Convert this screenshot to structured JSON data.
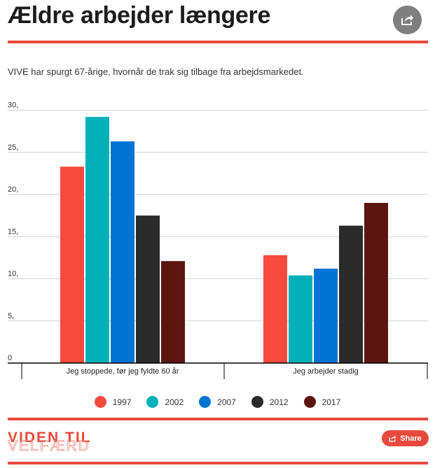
{
  "header": {
    "title": "Ældre arbejder længere"
  },
  "subtitle": "VIVE har spurgt 67-årige, hvornår de trak sig tilbage fra arbejdsmarkedet.",
  "colors": {
    "accent": "#e8493c",
    "share_circle": "#7f7f7f"
  },
  "chart_data": {
    "type": "bar",
    "categories": [
      "Jeg stoppede, før jeg fyldte 60 år",
      "Jeg arbejder stadig"
    ],
    "series": [
      {
        "name": "1997",
        "color": "#f94a3d",
        "values": [
          23.3,
          12.8
        ]
      },
      {
        "name": "2002",
        "color": "#00b0b9",
        "values": [
          29.2,
          10.4
        ]
      },
      {
        "name": "2007",
        "color": "#0074d3",
        "values": [
          26.3,
          11.2
        ]
      },
      {
        "name": "2012",
        "color": "#2b2b2b",
        "values": [
          17.5,
          16.3
        ]
      },
      {
        "name": "2017",
        "color": "#5d1510",
        "values": [
          12.1,
          19.0
        ]
      }
    ],
    "y_ticks": [
      "30,",
      "25,",
      "20,",
      "15,",
      "10,",
      "5,",
      "0"
    ],
    "y_tick_values": [
      30,
      25,
      20,
      15,
      10,
      5,
      0
    ],
    "ylim": [
      0,
      30
    ],
    "grid": true,
    "legend_position": "bottom"
  },
  "footer": {
    "logo_line1": "VIDEN TIL",
    "logo_line2": "VELFÆRD",
    "share_label": "Share"
  }
}
